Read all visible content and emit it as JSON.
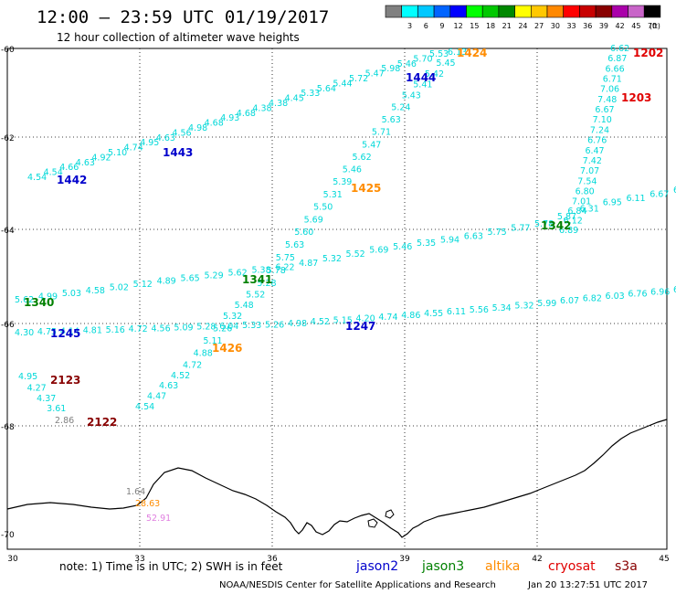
{
  "header": {
    "title": "12:00 – 23:59 UTC 01/19/2017",
    "subtitle": "12 hour collection of altimeter wave heights"
  },
  "legend": {
    "unit": "(ft)",
    "entries": [
      {
        "label": "",
        "color": "#808080"
      },
      {
        "label": "3",
        "color": "#00ffff"
      },
      {
        "label": "6",
        "color": "#00c8ff"
      },
      {
        "label": "9",
        "color": "#0064ff"
      },
      {
        "label": "12",
        "color": "#0000ff"
      },
      {
        "label": "15",
        "color": "#00ff00"
      },
      {
        "label": "18",
        "color": "#00c800"
      },
      {
        "label": "21",
        "color": "#008800"
      },
      {
        "label": "24",
        "color": "#ffff00"
      },
      {
        "label": "27",
        "color": "#ffc800"
      },
      {
        "label": "30",
        "color": "#ff8800"
      },
      {
        "label": "33",
        "color": "#ff0000"
      },
      {
        "label": "36",
        "color": "#c80000"
      },
      {
        "label": "39",
        "color": "#880000"
      },
      {
        "label": "42",
        "color": "#aa00aa"
      },
      {
        "label": "45",
        "color": "#c864c8"
      },
      {
        "label": "70",
        "color": "#000000"
      }
    ]
  },
  "axes": {
    "lat_labels": [
      "-60",
      "-62",
      "-64",
      "-66",
      "-68",
      "-70"
    ],
    "lon_labels": [
      "30",
      "33",
      "36",
      "39",
      "42",
      "45"
    ]
  },
  "colors": {
    "cyan": "#00d8d8",
    "gray": "#808080",
    "jason2": "#0000cc",
    "jason3": "#008000",
    "altika": "#ff8c00",
    "cryosat": "#e00000",
    "s3a": "#880000",
    "pink": "#e080e0"
  },
  "tracks": [
    {
      "id": "pass-1442-1443-1444",
      "values": [
        "4.54",
        "4.54",
        "4.66",
        "4.63",
        "4.92",
        "5.10",
        "4.74",
        "4.95",
        "4.63",
        "4.56",
        "4.98",
        "4.68",
        "4.93",
        "4.68",
        "4.38",
        "4.38",
        "4.45",
        "5.33",
        "5.64",
        "5.44",
        "5.72",
        "5.47",
        "5.98",
        "5.46",
        "5.70",
        "5.53"
      ]
    },
    {
      "id": "pass-1424-1425-1426",
      "values": [
        "6.13",
        "5.45",
        "5.42",
        "5.41",
        "5.43",
        "5.24",
        "5.63",
        "5.71",
        "5.47",
        "5.62",
        "5.46",
        "5.39",
        "5.31",
        "5.50",
        "5.69",
        "5.60",
        "5.63",
        "5.75",
        "5.78",
        "5.28",
        "5.52",
        "5.48",
        "5.32",
        "5.26",
        "5.11",
        "4.88",
        "4.72",
        "4.52",
        "4.63",
        "4.47",
        "4.54"
      ]
    },
    {
      "id": "pass-1202-1203",
      "values": [
        "6.62",
        "6.87",
        "6.66",
        "6.71",
        "7.06",
        "7.48",
        "6.67",
        "7.10",
        "7.24",
        "6.76",
        "6.47",
        "7.42",
        "7.07",
        "7.54",
        "6.80",
        "7.01",
        "6.84",
        "6.12",
        "6.89"
      ]
    },
    {
      "id": "pass-1340-1341-1342",
      "values": [
        "5.62",
        "4.99",
        "5.03",
        "4.58",
        "5.02",
        "5.12",
        "4.89",
        "5.65",
        "5.29",
        "5.62",
        "5.38",
        "6.22",
        "4.87",
        "5.32",
        "5.52",
        "5.69",
        "5.46",
        "5.35",
        "5.94",
        "6.63",
        "5.75",
        "5.77",
        "5.78",
        "5.87",
        "6.31",
        "6.95",
        "6.11",
        "6.67",
        "6.0"
      ]
    },
    {
      "id": "pass-1245-1247",
      "values": [
        "4.30",
        "4.75",
        "4.14",
        "4.81",
        "5.16",
        "4.72",
        "4.56",
        "5.09",
        "5.28",
        "6.04",
        "5.33",
        "5.26",
        "4.98",
        "4.52",
        "5.15",
        "4.20",
        "4.74",
        "4.86",
        "4.55",
        "6.11",
        "5.56",
        "5.34",
        "5.32",
        "5.99",
        "6.07",
        "6.82",
        "6.03",
        "6.76",
        "6.96",
        "6.4"
      ]
    },
    {
      "id": "pass-2122-2123",
      "values": [
        "4.95",
        "4.27",
        "4.37",
        "3.61",
        "2.86"
      ]
    }
  ],
  "pass_labels": [
    {
      "text": "1442",
      "sat": "jason2"
    },
    {
      "text": "1443",
      "sat": "jason2"
    },
    {
      "text": "1444",
      "sat": "jason2"
    },
    {
      "text": "1424",
      "sat": "altika"
    },
    {
      "text": "1425",
      "sat": "altika"
    },
    {
      "text": "1426",
      "sat": "altika"
    },
    {
      "text": "1202",
      "sat": "cryosat"
    },
    {
      "text": "1203",
      "sat": "cryosat"
    },
    {
      "text": "1340",
      "sat": "jason3"
    },
    {
      "text": "1341",
      "sat": "jason3"
    },
    {
      "text": "1342",
      "sat": "jason3"
    },
    {
      "text": "1245",
      "sat": "jason2"
    },
    {
      "text": "1247",
      "sat": "jason2"
    },
    {
      "text": "2123",
      "sat": "s3a"
    },
    {
      "text": "2122",
      "sat": "s3a"
    }
  ],
  "coast_values": [
    "1.64",
    "28.63",
    "52.91"
  ],
  "footer": {
    "note": "note: 1) Time is in UTC; 2) SWH is in feet",
    "satellites": [
      {
        "name": "jason2",
        "color": "#0000cc"
      },
      {
        "name": "jason3",
        "color": "#008000"
      },
      {
        "name": "altika",
        "color": "#ff8c00"
      },
      {
        "name": "cryosat",
        "color": "#e00000"
      },
      {
        "name": "s3a",
        "color": "#880000"
      }
    ],
    "credit": "NOAA/NESDIS Center for Satellite Applications and Research",
    "timestamp": "Jan 20 13:27:51 UTC 2017"
  }
}
